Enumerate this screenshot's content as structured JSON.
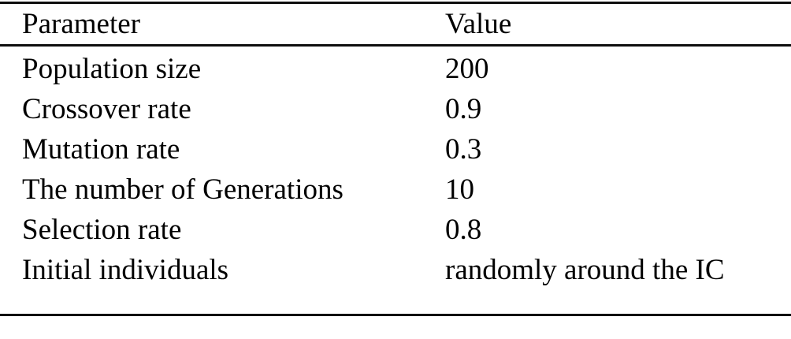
{
  "table": {
    "columns": {
      "parameter": "Parameter",
      "value": "Value"
    },
    "rows": [
      {
        "parameter": "Population size",
        "value": "200"
      },
      {
        "parameter": "Crossover rate",
        "value": "0.9"
      },
      {
        "parameter": "Mutation rate",
        "value": "0.3"
      },
      {
        "parameter": "The number of Generations",
        "value": "10"
      },
      {
        "parameter": "Selection rate",
        "value": "0.8"
      },
      {
        "parameter": "Initial individuals",
        "value": "randomly around the IC"
      }
    ]
  },
  "colors": {
    "text": "#000000",
    "background": "#ffffff",
    "rule": "#0d0d0d"
  }
}
